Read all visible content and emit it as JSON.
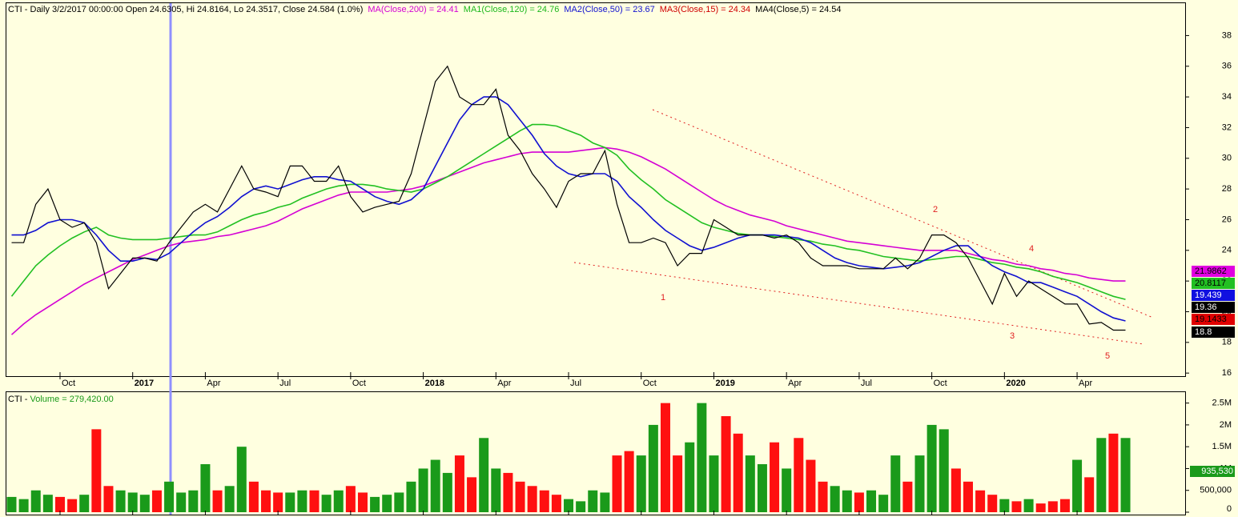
{
  "chart_data": {
    "type": "line",
    "header": [
      {
        "text": "CTI - Daily 3/2/2017 00:00:00 Open 24.6305, Hi 24.8164, Lo 24.3517, Close 24.584 (1.0%)",
        "color": "#000000"
      },
      {
        "text": "MA(Close,200) = 24.41",
        "color": "#d400d4"
      },
      {
        "text": "MA1(Close,120) = 24.76",
        "color": "#1db81d"
      },
      {
        "text": "MA2(Close,50) = 23.67",
        "color": "#1010d0"
      },
      {
        "text": "MA3(Close,15) = 24.34",
        "color": "#d00000"
      },
      {
        "text": "MA4(Close,5) = 24.54",
        "color": "#000000"
      }
    ],
    "categories": [
      null,
      null,
      null,
      null,
      "Oct",
      null,
      null,
      null,
      null,
      null,
      "2017",
      null,
      null,
      null,
      null,
      null,
      "Apr",
      null,
      null,
      null,
      null,
      null,
      "Jul",
      null,
      null,
      null,
      null,
      null,
      "Oct",
      null,
      null,
      null,
      null,
      null,
      "2018",
      null,
      null,
      null,
      null,
      null,
      "Apr",
      null,
      null,
      null,
      null,
      null,
      "Jul",
      null,
      null,
      null,
      null,
      null,
      "Oct",
      null,
      null,
      null,
      null,
      null,
      "2019",
      null,
      null,
      null,
      null,
      null,
      "Apr",
      null,
      null,
      null,
      null,
      null,
      "Jul",
      null,
      null,
      null,
      null,
      null,
      "Oct",
      null,
      null,
      null,
      null,
      null,
      "2020",
      null,
      null,
      null,
      null,
      null,
      "Apr",
      null,
      null,
      null,
      null
    ],
    "series": [
      {
        "color": "#d400d4",
        "values": [
          18.5,
          19.2,
          19.8,
          20.3,
          20.8,
          21.3,
          21.8,
          22.2,
          22.6,
          23,
          23.4,
          23.7,
          24,
          24.3,
          24.5,
          24.6,
          24.7,
          24.9,
          25,
          25.2,
          25.4,
          25.6,
          25.9,
          26.3,
          26.7,
          27,
          27.3,
          27.6,
          27.8,
          27.8,
          27.8,
          27.8,
          27.9,
          28,
          28.2,
          28.5,
          28.8,
          29.1,
          29.4,
          29.7,
          29.9,
          30.1,
          30.3,
          30.4,
          30.4,
          30.4,
          30.4,
          30.5,
          30.6,
          30.7,
          30.6,
          30.4,
          30.1,
          29.7,
          29.3,
          28.8,
          28.3,
          27.8,
          27.3,
          26.9,
          26.6,
          26.3,
          26.1,
          25.9,
          25.6,
          25.4,
          25.2,
          25,
          24.8,
          24.6,
          24.5,
          24.4,
          24.3,
          24.2,
          24.1,
          24,
          24,
          24,
          24,
          23.8,
          23.6,
          23.4,
          23.3,
          23.1,
          23,
          22.8,
          22.7,
          22.5,
          22.4,
          22.2,
          22.1,
          22,
          22
        ]
      },
      {
        "color": "#22c022",
        "values": [
          21,
          22,
          23,
          23.7,
          24.3,
          24.8,
          25.2,
          25.5,
          25,
          24.8,
          24.7,
          24.7,
          24.7,
          24.8,
          24.9,
          25,
          25,
          25.2,
          25.6,
          26,
          26.3,
          26.5,
          26.8,
          27,
          27.4,
          27.7,
          28,
          28.2,
          28.3,
          28.3,
          28.2,
          28,
          27.9,
          27.8,
          28,
          28.4,
          28.8,
          29.3,
          29.8,
          30.3,
          30.8,
          31.3,
          31.8,
          32.2,
          32.2,
          32.1,
          31.8,
          31.5,
          31,
          30.7,
          30.2,
          29.3,
          28.6,
          28,
          27.3,
          26.8,
          26.3,
          25.8,
          25.5,
          25.3,
          25.1,
          25,
          25,
          24.9,
          24.8,
          24.7,
          24.6,
          24.4,
          24.3,
          24.1,
          24,
          23.8,
          23.6,
          23.5,
          23.4,
          23.3,
          23.4,
          23.5,
          23.6,
          23.6,
          23.4,
          23.2,
          23.1,
          22.9,
          22.8,
          22.6,
          22.3,
          22.1,
          21.9,
          21.6,
          21.3,
          21,
          20.8
        ]
      },
      {
        "color": "#1010d0",
        "values": [
          25,
          25,
          25.3,
          25.8,
          26,
          26,
          25.8,
          25,
          24,
          23.3,
          23.3,
          23.5,
          23.4,
          23.8,
          24.5,
          25.2,
          25.8,
          26.2,
          26.8,
          27.5,
          28,
          28.2,
          28,
          28.3,
          28.6,
          28.8,
          28.8,
          28.6,
          28.5,
          28,
          27.5,
          27.2,
          27,
          27.3,
          28,
          29.5,
          31,
          32.5,
          33.5,
          34,
          34,
          33.5,
          32.5,
          31.5,
          30.3,
          29.5,
          29,
          28.8,
          29,
          29,
          28.5,
          27.5,
          26.8,
          26,
          25.3,
          24.8,
          24.3,
          24,
          24.2,
          24.5,
          24.8,
          25,
          25,
          25,
          24.9,
          24.8,
          24.5,
          24,
          23.5,
          23.2,
          23,
          22.9,
          22.8,
          22.9,
          23,
          23.2,
          23.6,
          24,
          24.3,
          24.3,
          23.6,
          23,
          22.6,
          22.3,
          21.9,
          21.9,
          21.6,
          21.3,
          21,
          20.5,
          20,
          19.6,
          19.4
        ]
      },
      {
        "color": "#000000",
        "values": [
          24.5,
          24.5,
          27,
          28,
          26,
          25.5,
          25.8,
          24.5,
          21.5,
          22.5,
          23.5,
          23.5,
          23.3,
          24.5,
          25.5,
          26.5,
          27,
          26.5,
          28,
          29.5,
          28,
          27.8,
          27.5,
          29.5,
          29.5,
          28.5,
          28.5,
          29.5,
          27.5,
          26.5,
          26.8,
          27,
          27.2,
          29,
          32,
          35,
          36,
          34,
          33.5,
          33.5,
          34.5,
          31.5,
          30.5,
          29,
          28,
          26.8,
          28.5,
          29,
          29,
          30.5,
          27,
          24.5,
          24.5,
          24.8,
          24.5,
          23,
          23.8,
          23.8,
          26,
          25.5,
          25,
          25,
          25,
          24.8,
          25,
          24.5,
          23.5,
          23,
          23,
          23,
          22.8,
          22.8,
          22.8,
          23.5,
          22.8,
          23.5,
          25,
          25,
          24.5,
          23.5,
          22,
          20.5,
          22.5,
          21,
          22,
          21.5,
          21,
          20.5,
          20.5,
          19.2,
          19.3,
          18.8,
          18.8
        ]
      }
    ],
    "ylim": [
      15.8,
      39.9
    ],
    "yticks": [
      16,
      18,
      20,
      22,
      24,
      26,
      28,
      30,
      32,
      34,
      36,
      38
    ],
    "price_boxes": [
      {
        "value": 21.9862,
        "color": "#e000e0",
        "text_color": "#000000"
      },
      {
        "value": 20.8117,
        "color": "#22c022",
        "text_color": "#000000"
      },
      {
        "value": 19.439,
        "color": "#1010e0",
        "text_color": "#ffffff"
      },
      {
        "value": 19.36,
        "color": "#000000",
        "text_color": "#ffffff"
      },
      {
        "value": 19.1433,
        "color": "#e00000",
        "text_color": "#000000"
      },
      {
        "value": 18.8,
        "color": "#000000",
        "text_color": "#ffffff"
      }
    ],
    "wave_labels": [
      "1",
      "2",
      "3",
      "4",
      "5"
    ],
    "volume": {
      "header": [
        {
          "text": "CTI - ",
          "color": "#000000"
        },
        {
          "text": "Volume = 279,420.00",
          "color": "#1a9a1a"
        }
      ],
      "values": [
        350000,
        300000,
        500000,
        400000,
        350000,
        300000,
        400000,
        1900000,
        600000,
        500000,
        450000,
        400000,
        500000,
        700000,
        450000,
        500000,
        1100000,
        500000,
        600000,
        1500000,
        700000,
        500000,
        450000,
        450000,
        500000,
        500000,
        400000,
        500000,
        600000,
        450000,
        350000,
        400000,
        450000,
        700000,
        1000000,
        1200000,
        900000,
        1300000,
        800000,
        1700000,
        1000000,
        900000,
        700000,
        600000,
        500000,
        400000,
        300000,
        250000,
        500000,
        450000,
        1300000,
        1400000,
        1300000,
        2000000,
        2500000,
        1300000,
        1600000,
        2500000,
        1300000,
        2200000,
        1800000,
        1300000,
        1100000,
        1600000,
        1000000,
        1700000,
        1200000,
        700000,
        600000,
        500000,
        450000,
        500000,
        400000,
        1300000,
        700000,
        1300000,
        2000000,
        1900000,
        1000000,
        700000,
        500000,
        400000,
        300000,
        250000,
        300000,
        200000,
        250000,
        300000,
        1200000,
        800000,
        1700000,
        1800000,
        1700000
      ],
      "up_color": "#1a9a1a",
      "down_color": "#ff1010",
      "ylim": [
        0,
        2750000
      ],
      "yticks": [
        0,
        {
          "value": 500000,
          "label": "500,000"
        },
        {
          "value": 1000000,
          "label": "1M"
        },
        {
          "value": 1500000,
          "label": "1.5M"
        },
        {
          "value": 2000000,
          "label": "2M"
        },
        {
          "value": 2500000,
          "label": "2.5M"
        }
      ],
      "last_box": {
        "value": 935530,
        "label": "935,530",
        "color": "#1a9a1a"
      }
    }
  }
}
